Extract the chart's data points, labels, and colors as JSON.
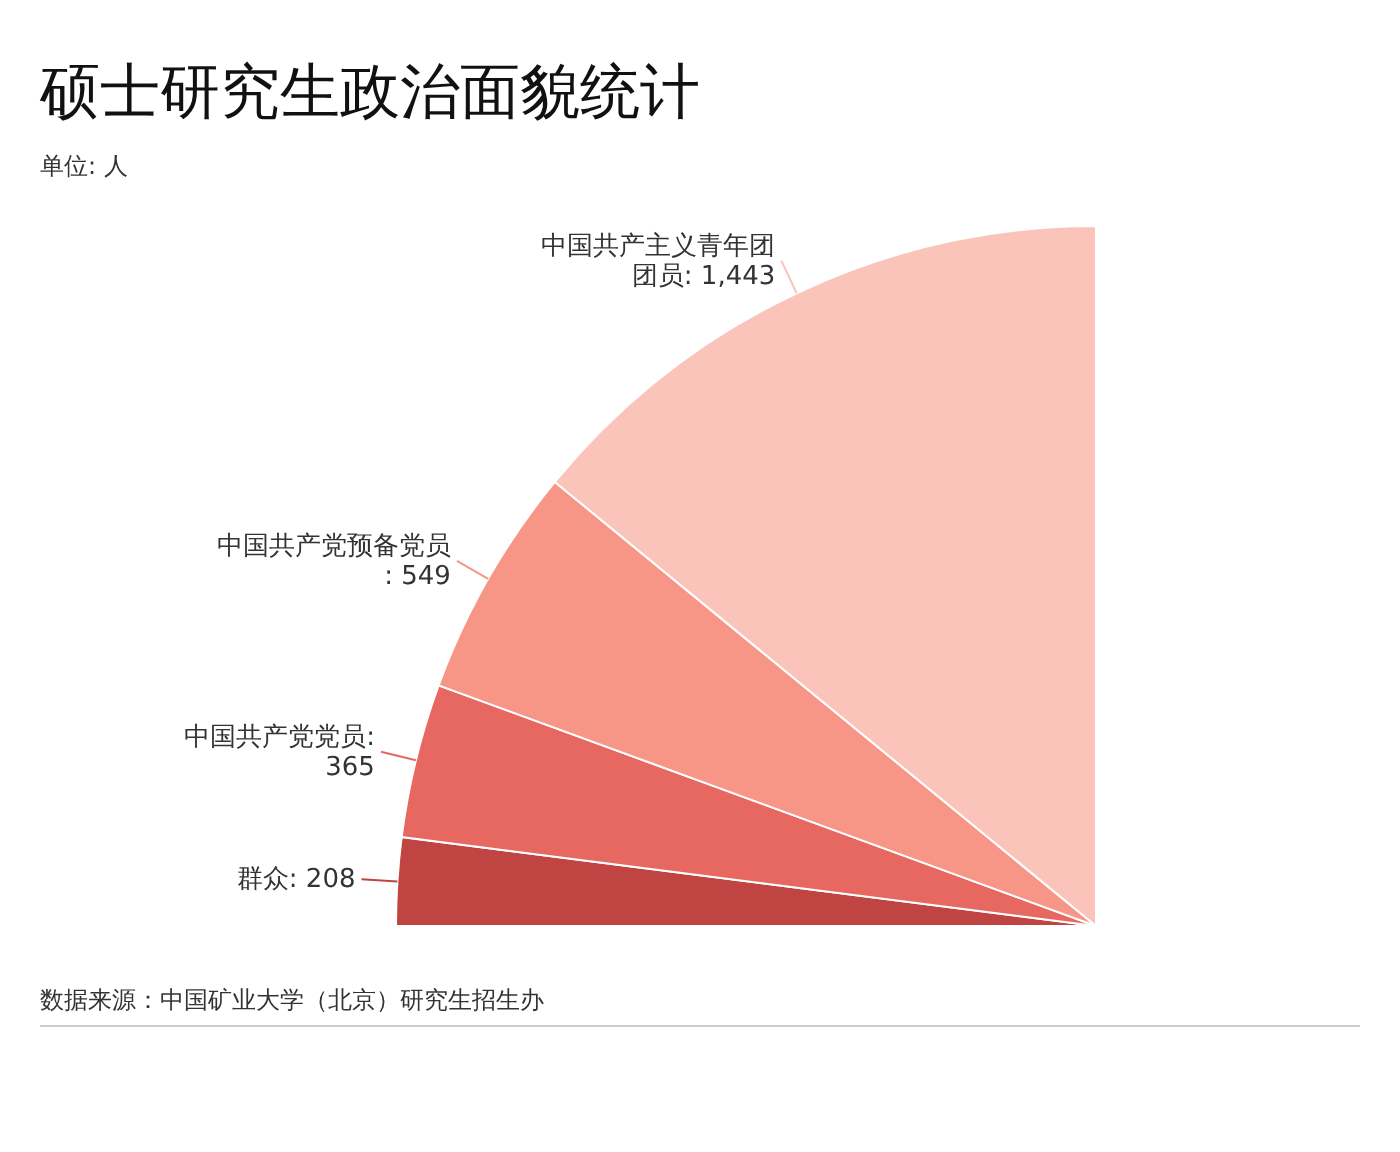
{
  "chart_data": {
    "type": "pie",
    "title": "硕士研究生政治面貌统计",
    "subtitle": "单位: 人",
    "categories": [
      "群众",
      "中国共产党党员",
      "中国共产党预备党员",
      "中国共产主义青年团团员"
    ],
    "values": [
      208,
      365,
      549,
      1443
    ],
    "colors": [
      "#c04542",
      "#e66860",
      "#f79587",
      "#fbc4bb"
    ],
    "value_labels": [
      ": 208",
      ": 365",
      ": 549",
      ": 1,443"
    ],
    "annotations": [
      "数据来源：中国矿业大学（北京）研究生招生办"
    ]
  }
}
